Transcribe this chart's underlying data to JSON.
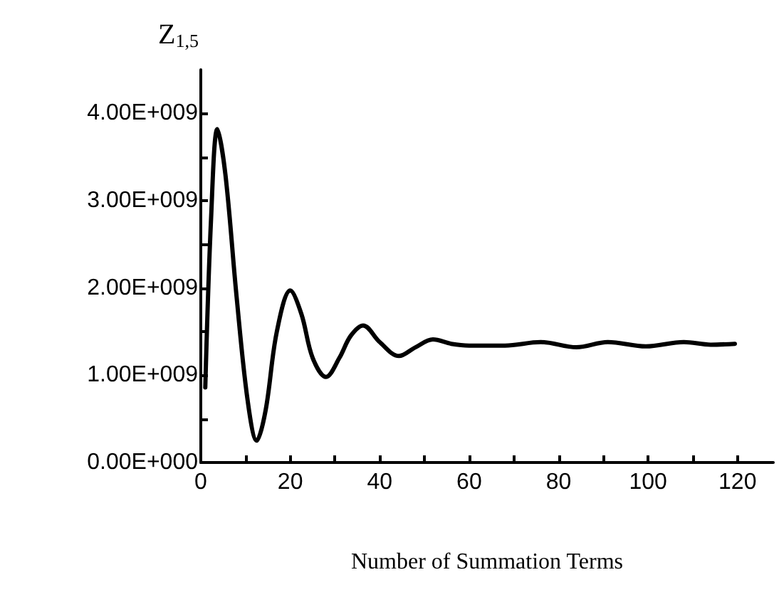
{
  "chart_data": {
    "type": "line",
    "xlabel": "Number of Summation Terms",
    "ylabel": "Z$_{1,5}$",
    "x": [
      1,
      2.3,
      3.7,
      5.5,
      8,
      10.5,
      12.5,
      14.5,
      17,
      20,
      22.5,
      25,
      28,
      31,
      33.5,
      36.3,
      40,
      44.3,
      48,
      51.9,
      56,
      60,
      68,
      76,
      84,
      91,
      99.5,
      108,
      114,
      119.4
    ],
    "series": [
      {
        "color": "#000000",
        "values": [
          860000000,
          2800000000,
          3820000000,
          3300000000,
          1900000000,
          700000000,
          250000000,
          600000000,
          1500000000,
          1970000000,
          1700000000,
          1200000000,
          980000000,
          1200000000,
          1450000000,
          1570000000,
          1380000000,
          1220000000,
          1320000000,
          1410000000,
          1360000000,
          1340000000,
          1340000000,
          1380000000,
          1320000000,
          1380000000,
          1330000000,
          1380000000,
          1350000000,
          1360000000
        ]
      }
    ],
    "xlim": [
      0,
      128
    ],
    "xticks": [
      0,
      {
        "value": 10,
        "label": null
      },
      20,
      {
        "value": 30,
        "label": null
      },
      40,
      {
        "value": 50,
        "label": null
      },
      60,
      {
        "value": 70,
        "label": null
      },
      80,
      {
        "value": 90,
        "label": null
      },
      100,
      {
        "value": 110,
        "label": null
      },
      120
    ],
    "ylim": [
      0,
      4500000000
    ],
    "yticks": [
      {
        "value": 0,
        "label": "0.00E+000"
      },
      {
        "value": 500000000,
        "label": null
      },
      {
        "value": 1000000000,
        "label": "1.00E+009"
      },
      {
        "value": 1500000000,
        "label": null
      },
      {
        "value": 2000000000,
        "label": "2.00E+009"
      },
      {
        "value": 2500000000,
        "label": null
      },
      {
        "value": 3000000000,
        "label": "3.00E+009"
      },
      {
        "value": 3500000000,
        "label": null
      },
      {
        "value": 4000000000,
        "label": "4.00E+009"
      }
    ],
    "grid": false,
    "marker": "none",
    "line_style": "solid"
  }
}
